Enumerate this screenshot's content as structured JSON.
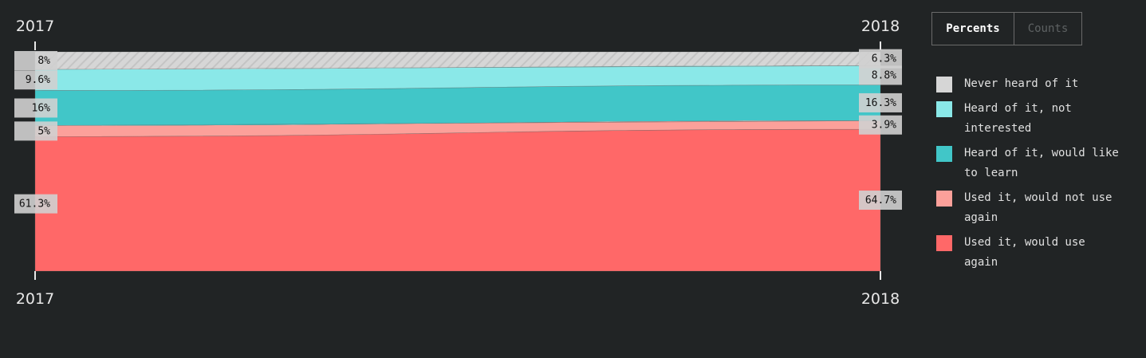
{
  "chart_data": {
    "type": "area",
    "x": [
      "2017",
      "2018"
    ],
    "series": [
      {
        "name": "Used it, would use again",
        "color": "#ff6868",
        "values": [
          61.3,
          64.7
        ]
      },
      {
        "name": "Used it, would not use again",
        "color": "#fca09a",
        "values": [
          5,
          3.9
        ]
      },
      {
        "name": "Heard of it, would like to learn",
        "color": "#41c6c8",
        "values": [
          16,
          16.3
        ]
      },
      {
        "name": "Heard of it, not interested",
        "color": "#8ae8e8",
        "values": [
          9.6,
          8.8
        ]
      },
      {
        "name": "Never heard of it",
        "color": "#d6d6d6",
        "hatched": true,
        "values": [
          8,
          6.3
        ]
      }
    ],
    "value_labels": {
      "2017": [
        "61.3%",
        "5%",
        "16%",
        "9.6%",
        "8%"
      ],
      "2018": [
        "64.7%",
        "3.9%",
        "16.3%",
        "8.8%",
        "6.3%"
      ]
    },
    "ylim": [
      0,
      100
    ]
  },
  "legend": [
    {
      "label_lines": [
        "Never heard of it"
      ],
      "color": "#d6d6d6"
    },
    {
      "label_lines": [
        "Heard of it, not",
        "interested"
      ],
      "color": "#8ae8e8"
    },
    {
      "label_lines": [
        "Heard of it, would like",
        "to learn"
      ],
      "color": "#41c6c8"
    },
    {
      "label_lines": [
        "Used it, would not use",
        "again"
      ],
      "color": "#fca09a"
    },
    {
      "label_lines": [
        "Used it, would use",
        "again"
      ],
      "color": "#ff6868"
    }
  ],
  "tabs": {
    "percents": "Percents",
    "counts": "Counts"
  }
}
